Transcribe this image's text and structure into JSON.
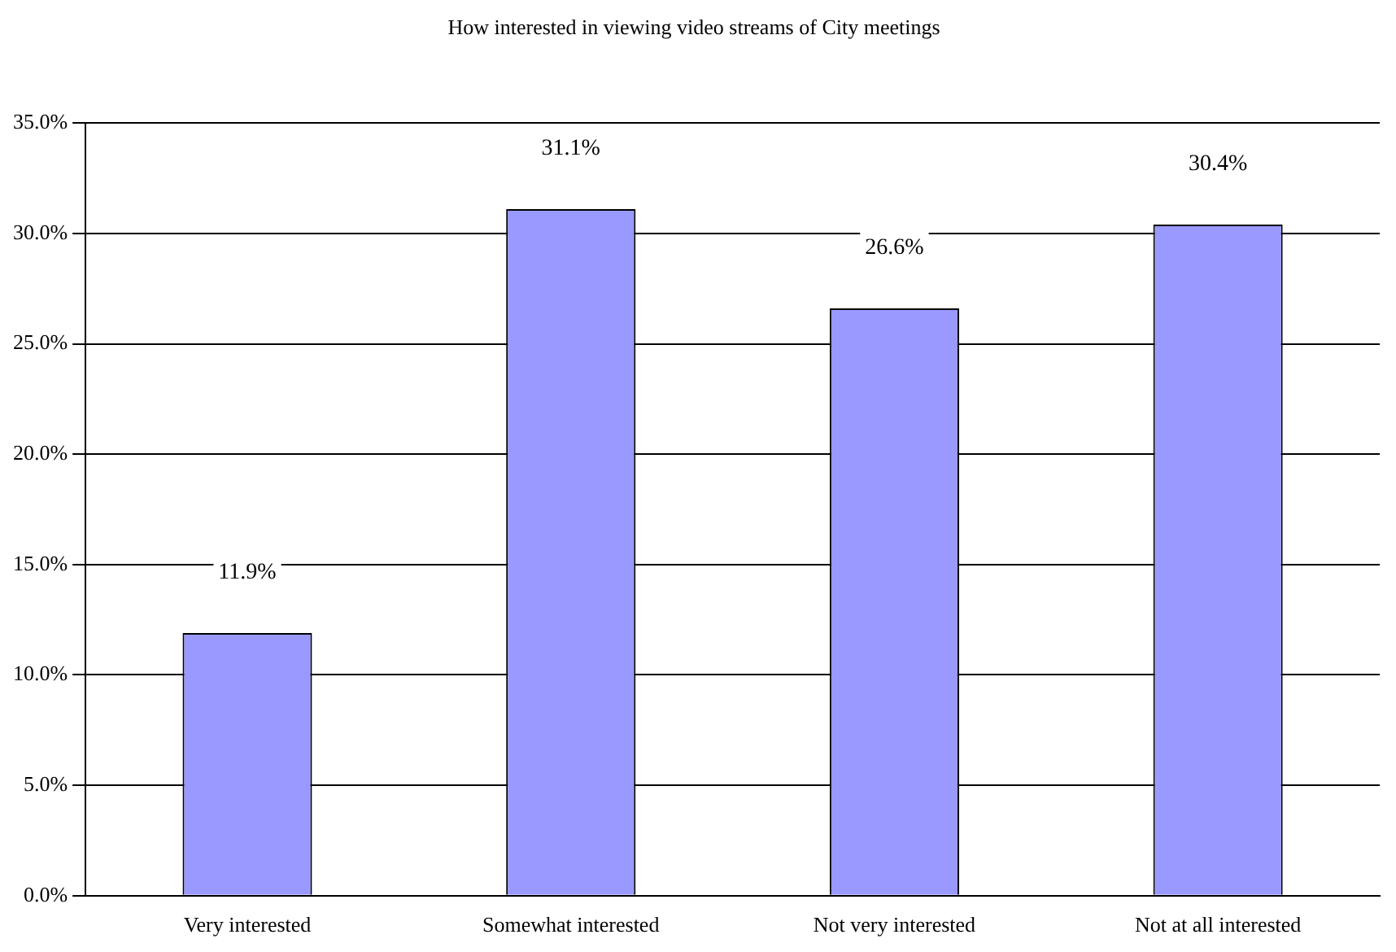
{
  "chart_data": {
    "type": "bar",
    "title": "How interested in viewing video streams of City meetings",
    "categories": [
      "Very interested",
      "Somewhat interested",
      "Not very interested",
      "Not at all interested"
    ],
    "values": [
      11.9,
      31.1,
      26.6,
      30.4
    ],
    "value_labels": [
      "11.9%",
      "31.1%",
      "26.6%",
      "30.4%"
    ],
    "color": "#9999ff",
    "ylim": [
      0,
      35
    ],
    "yticks": [
      {
        "value": 0,
        "label": "0.0%"
      },
      {
        "value": 5,
        "label": "5.0%"
      },
      {
        "value": 10,
        "label": "10.0%"
      },
      {
        "value": 15,
        "label": "15.0%"
      },
      {
        "value": 20,
        "label": "20.0%"
      },
      {
        "value": 25,
        "label": "25.0%"
      },
      {
        "value": 30,
        "label": "30.0%"
      },
      {
        "value": 35,
        "label": "35.0%"
      }
    ],
    "grid": "y"
  }
}
